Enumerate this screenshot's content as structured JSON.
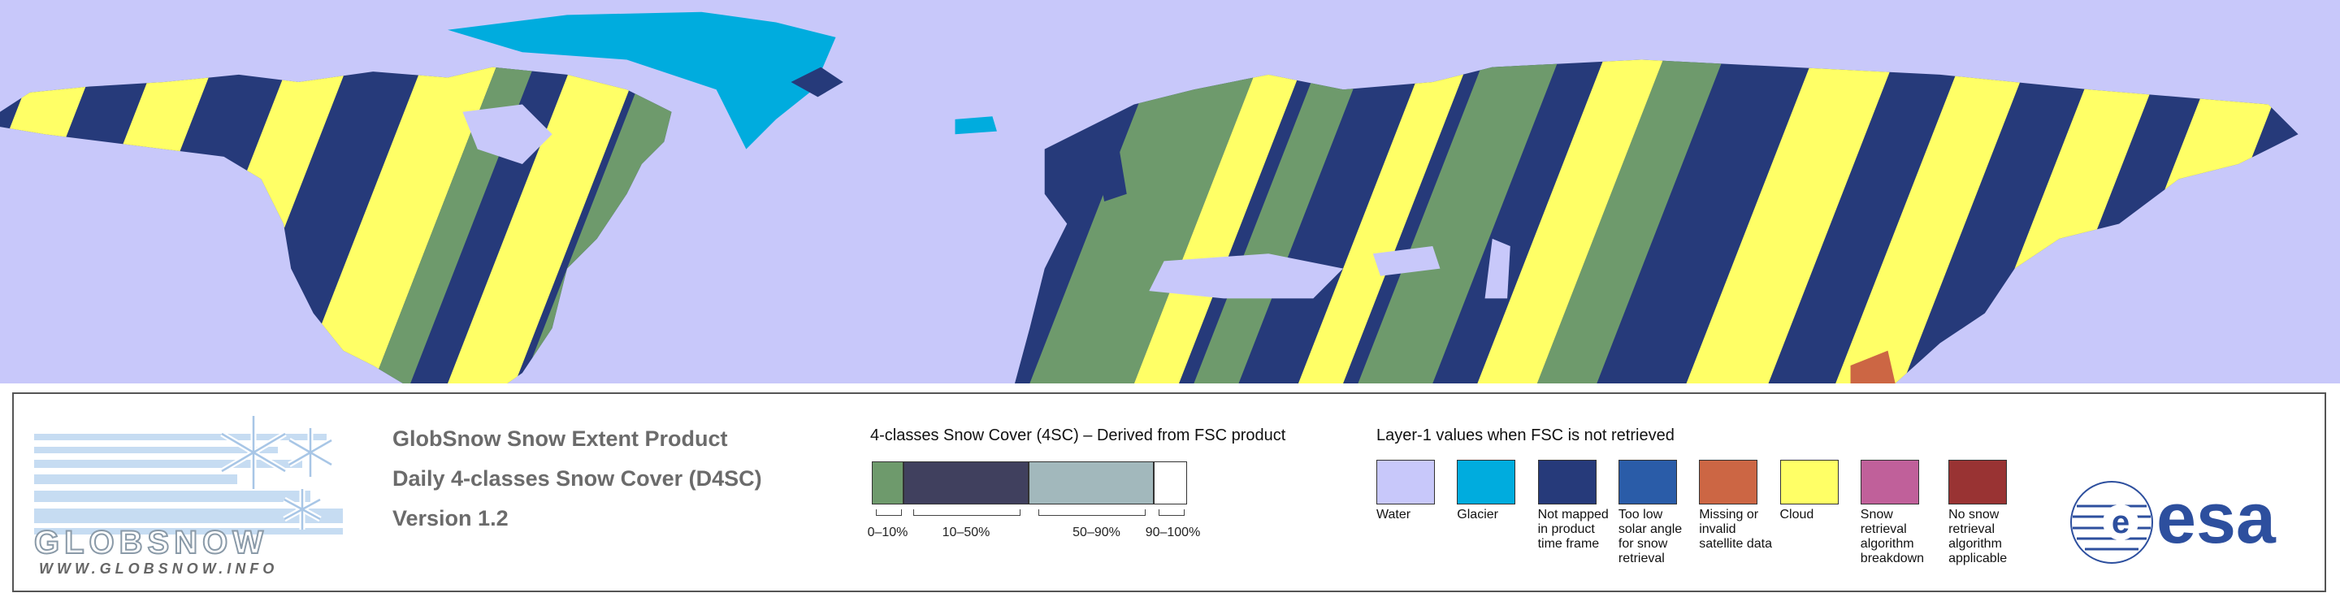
{
  "logo": {
    "name": "GLOBSNOW",
    "url": "WWW.GLOBSNOW.INFO"
  },
  "title_lines": [
    "GlobSnow Snow Extent Product",
    "Daily 4-classes Snow Cover (D4SC)",
    "Version 1.2"
  ],
  "snow_cover_legend": {
    "title": "4-classes Snow Cover (4SC) – Derived from FSC product",
    "classes": [
      {
        "label": "0–10%",
        "color": "#6e9a6c"
      },
      {
        "label": "10–50%",
        "color": "#40405e"
      },
      {
        "label": "50–90%",
        "color": "#a2b8bc"
      },
      {
        "label": "90–100%",
        "color": "#ffffff"
      }
    ]
  },
  "layer1_legend": {
    "title": "Layer-1 values when FSC is not retrieved",
    "items": [
      {
        "label": "Water",
        "color": "#c8c8fa"
      },
      {
        "label": "Glacier",
        "color": "#00acde"
      },
      {
        "label": "Not mapped in product time frame",
        "color": "#263a7a"
      },
      {
        "label": "Too low solar angle for snow retrieval",
        "color": "#2a5ca8"
      },
      {
        "label": "Missing or invalid satellite data",
        "color": "#cc6644"
      },
      {
        "label": "Cloud",
        "color": "#ffff66"
      },
      {
        "label": "Snow retrieval algorithm breakdown",
        "color": "#c0609a"
      },
      {
        "label": "No snow retrieval algorithm applicable",
        "color": "#993333"
      }
    ]
  },
  "agency_logo": "esa"
}
